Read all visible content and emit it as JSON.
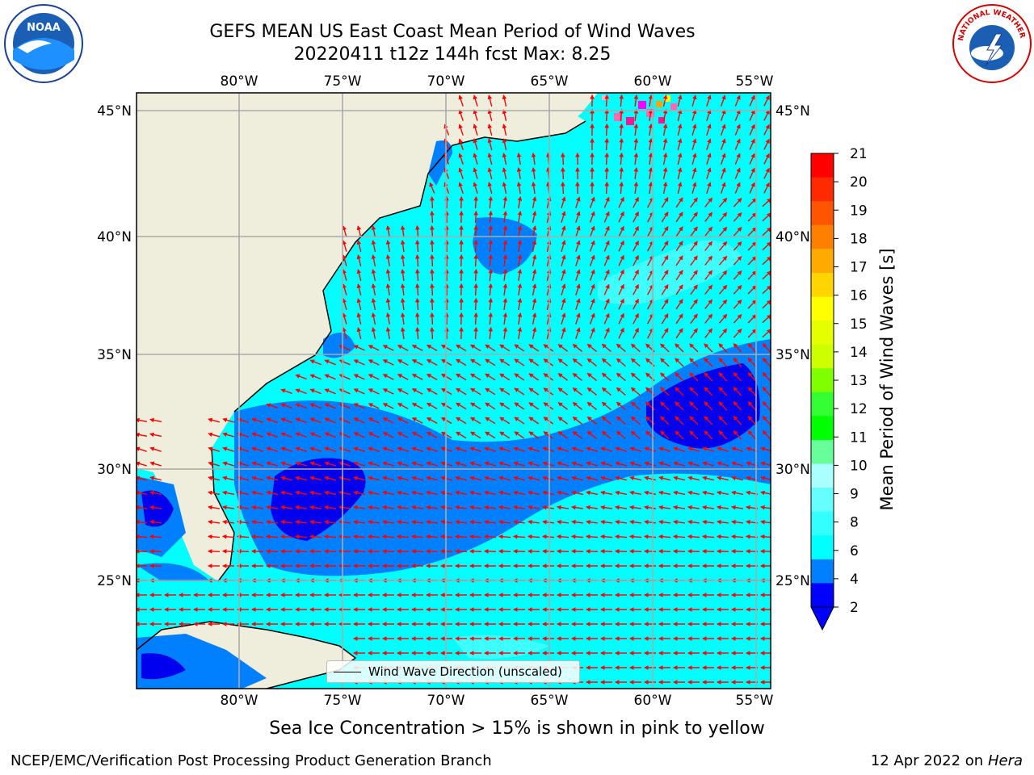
{
  "title_line1": "GEFS MEAN US East Coast Mean Period of Wind Waves",
  "title_line2": "20220411 t12z 144h fcst   Max: 8.25",
  "subtitle": "Sea Ice Concentration > 15% is shown in pink to yellow",
  "credit": "NCEP/EMC/Verification Post Processing Product Generation Branch",
  "stamp_date": "12 Apr 2022 on ",
  "stamp_machine": "Hera",
  "logos": {
    "left": "NOAA",
    "right_text": "NATIONAL WEATHER SERVICE"
  },
  "legend": {
    "label": "Wind Wave Direction (unscaled)"
  },
  "colors": {
    "land": "#efeedc",
    "ocean_light": "#00ffff",
    "ocean_mid": "#0080ff",
    "ocean_dark": "#0000ee",
    "arrow": "#ff0000"
  },
  "map": {
    "lon_ticks": [
      "80°W",
      "75°W",
      "70°W",
      "65°W",
      "60°W",
      "55°W"
    ],
    "lat_ticks": [
      "45°N",
      "40°N",
      "35°N",
      "30°N",
      "25°N"
    ]
  },
  "colorbar": {
    "label": "Mean Period of Wind Waves [s]",
    "ticks": [
      "21",
      "20",
      "19",
      "18",
      "17",
      "16",
      "15",
      "14",
      "13",
      "12",
      "11",
      "10",
      "9",
      "8",
      "6",
      "4",
      "2"
    ],
    "colors": [
      "#ff0000",
      "#ff2a00",
      "#ff5500",
      "#ff8000",
      "#ffaa00",
      "#ffd500",
      "#ffff00",
      "#e5ff00",
      "#ccff00",
      "#80ff00",
      "#33ff33",
      "#00ff00",
      "#66ff99",
      "#aaffff",
      "#66ffff",
      "#33ffff",
      "#00ffff",
      "#0080ff",
      "#0000ff"
    ]
  }
}
